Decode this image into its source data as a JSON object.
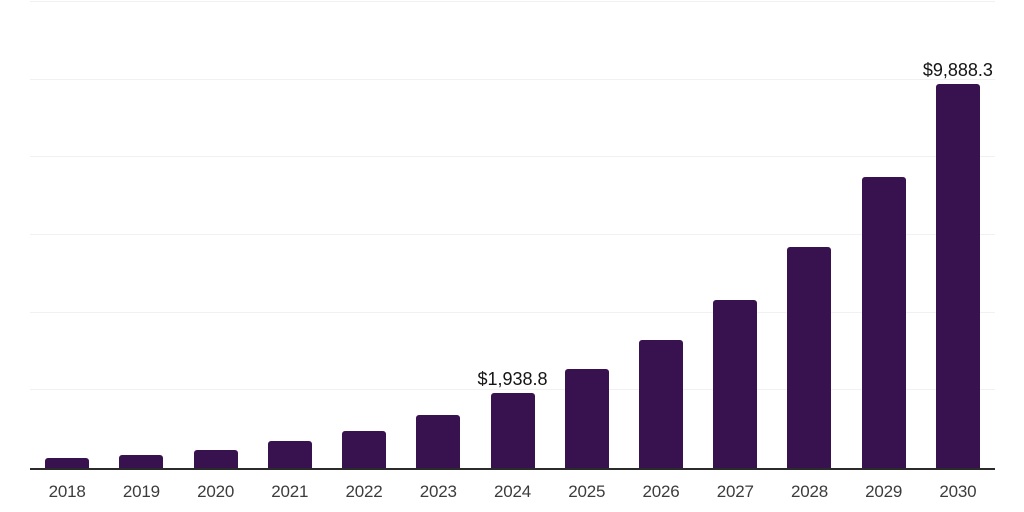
{
  "chart_data": {
    "type": "bar",
    "title": "",
    "xlabel": "",
    "ylabel": "",
    "categories": [
      "2018",
      "2019",
      "2020",
      "2021",
      "2022",
      "2023",
      "2024",
      "2025",
      "2026",
      "2027",
      "2028",
      "2029",
      "2030"
    ],
    "values": [
      250,
      340,
      460,
      690,
      950,
      1360,
      1938.8,
      2540,
      3300,
      4330,
      5690,
      7500,
      9888.3
    ],
    "value_labels": [
      "",
      "",
      "",
      "",
      "",
      "",
      "$1,938.8",
      "",
      "",
      "",
      "",
      "",
      "$9,888.3"
    ],
    "labeled_points": [
      {
        "category": "2024",
        "label": "$1,938.8",
        "value": 1938.8
      },
      {
        "category": "2030",
        "label": "$9,888.3",
        "value": 9888.3
      }
    ],
    "ylim": [
      0,
      12000
    ],
    "gridline_values": [
      2000,
      4000,
      6000,
      8000,
      10000,
      12000
    ],
    "grid": "horizontal",
    "legend_position": "none",
    "y_tick_labels_visible": false,
    "colors": {
      "bar": "#38114f",
      "gridline": "#f1f1f1",
      "axis_line": "#2b2b2b",
      "tick_label": "#3c3c3c",
      "value_label": "#141414",
      "background": "#ffffff"
    }
  }
}
